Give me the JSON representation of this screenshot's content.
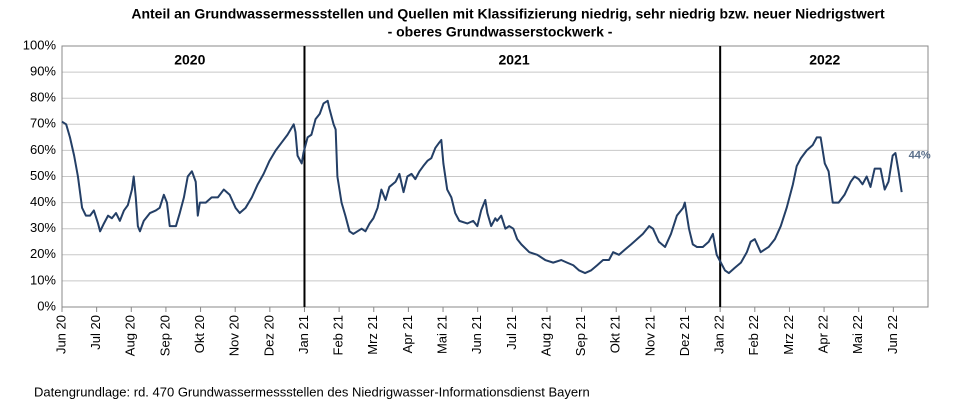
{
  "chart_data": {
    "type": "line",
    "title": [
      "Anteil  an Grundwassermessstellen und Quellen mit Klassifizierung niedrig, sehr niedrig bzw. neuer Niedrigstwert",
      "- oberes Grundwasserstockwerk -"
    ],
    "footnote": "Datengrundlage:  rd. 470 Grundwassermessstellen  des Niedrigwasser-Informationsdienst  Bayern",
    "xlim": [
      0,
      25
    ],
    "xticks": [
      {
        "value": 0,
        "label": "Jun 20"
      },
      {
        "value": 1,
        "label": "Jul 20"
      },
      {
        "value": 2,
        "label": "Aug 20"
      },
      {
        "value": 3,
        "label": "Sep 20"
      },
      {
        "value": 4,
        "label": "Okt 20"
      },
      {
        "value": 5,
        "label": "Nov 20"
      },
      {
        "value": 6,
        "label": "Dez 20"
      },
      {
        "value": 7,
        "label": "Jan 21"
      },
      {
        "value": 8,
        "label": "Feb 21"
      },
      {
        "value": 9,
        "label": "Mrz 21"
      },
      {
        "value": 10,
        "label": "Apr 21"
      },
      {
        "value": 11,
        "label": "Mai 21"
      },
      {
        "value": 12,
        "label": "Jun 21"
      },
      {
        "value": 13,
        "label": "Jul 21"
      },
      {
        "value": 14,
        "label": "Aug 21"
      },
      {
        "value": 15,
        "label": "Sep 21"
      },
      {
        "value": 16,
        "label": "Okt 21"
      },
      {
        "value": 17,
        "label": "Nov 21"
      },
      {
        "value": 18,
        "label": "Dez 21"
      },
      {
        "value": 19,
        "label": "Jan 22"
      },
      {
        "value": 20,
        "label": "Feb 22"
      },
      {
        "value": 21,
        "label": "Mrz 22"
      },
      {
        "value": 22,
        "label": "Apr 22"
      },
      {
        "value": 23,
        "label": "Mai 22"
      },
      {
        "value": 24,
        "label": "Jun 22"
      }
    ],
    "ylim": [
      0,
      100
    ],
    "yticks": [
      {
        "value": 0,
        "label": "0%"
      },
      {
        "value": 10,
        "label": "10%"
      },
      {
        "value": 20,
        "label": "20%"
      },
      {
        "value": 30,
        "label": "30%"
      },
      {
        "value": 40,
        "label": "40%"
      },
      {
        "value": 50,
        "label": "50%"
      },
      {
        "value": 60,
        "label": "60%"
      },
      {
        "value": 70,
        "label": "70%"
      },
      {
        "value": 80,
        "label": "80%"
      },
      {
        "value": 90,
        "label": "90%"
      },
      {
        "value": 100,
        "label": "100%"
      }
    ],
    "grid": true,
    "year_dividers": [
      7,
      19
    ],
    "year_labels": [
      {
        "text": "2020",
        "x": 3.69
      },
      {
        "text": "2021",
        "x": 13.05
      },
      {
        "text": "2022",
        "x": 22.02
      }
    ],
    "x": [
      0,
      0.12,
      0.23,
      0.35,
      0.46,
      0.58,
      0.69,
      0.81,
      0.92,
      1.04,
      1.1,
      1.21,
      1.33,
      1.44,
      1.56,
      1.67,
      1.79,
      1.9,
      2.02,
      2.07,
      2.13,
      2.19,
      2.25,
      2.36,
      2.54,
      2.71,
      2.82,
      2.94,
      3.03,
      3.11,
      3.29,
      3.4,
      3.52,
      3.63,
      3.75,
      3.86,
      3.92,
      3.98,
      4.15,
      4.32,
      4.5,
      4.67,
      4.84,
      5.01,
      5.13,
      5.3,
      5.48,
      5.65,
      5.82,
      5.99,
      6.17,
      6.34,
      6.51,
      6.69,
      6.74,
      6.8,
      6.92,
      6.97,
      7.09,
      7.2,
      7.32,
      7.44,
      7.55,
      7.67,
      7.72,
      7.84,
      7.9,
      7.95,
      8.07,
      8.18,
      8.3,
      8.41,
      8.53,
      8.65,
      8.76,
      8.88,
      8.99,
      9.11,
      9.22,
      9.34,
      9.45,
      9.63,
      9.74,
      9.86,
      9.97,
      10.09,
      10.2,
      10.32,
      10.43,
      10.55,
      10.66,
      10.78,
      10.89,
      10.95,
      11.01,
      11.12,
      11.24,
      11.35,
      11.47,
      11.7,
      11.87,
      11.99,
      12.1,
      12.22,
      12.28,
      12.39,
      12.51,
      12.56,
      12.68,
      12.8,
      12.91,
      13.03,
      13.14,
      13.26,
      13.49,
      13.72,
      13.95,
      14.18,
      14.41,
      14.58,
      14.76,
      14.93,
      15.1,
      15.27,
      15.45,
      15.62,
      15.79,
      15.91,
      16.08,
      16.25,
      16.43,
      16.6,
      16.77,
      16.95,
      17.06,
      17.23,
      17.41,
      17.58,
      17.75,
      17.93,
      17.98,
      18.1,
      18.21,
      18.33,
      18.5,
      18.67,
      18.79,
      18.9,
      19.02,
      19.14,
      19.25,
      19.42,
      19.6,
      19.77,
      19.88,
      20.0,
      20.17,
      20.4,
      20.58,
      20.75,
      20.92,
      21.1,
      21.21,
      21.33,
      21.5,
      21.67,
      21.79,
      21.9,
      21.96,
      22.02,
      22.13,
      22.25,
      22.42,
      22.59,
      22.77,
      22.88,
      23.0,
      23.11,
      23.23,
      23.34,
      23.46,
      23.63,
      23.75,
      23.86,
      23.98,
      24.06,
      24.15,
      24.24
    ],
    "series": [
      {
        "name": "Anteil",
        "color": "#243f66",
        "end_label": "44%",
        "values": [
          71,
          70,
          65,
          58,
          50,
          38,
          35,
          35,
          37,
          32,
          29,
          32,
          35,
          34,
          36,
          33,
          37,
          39,
          45,
          50,
          42,
          31,
          29,
          33,
          36,
          37,
          38,
          43,
          40,
          31,
          31,
          36,
          42,
          50,
          52,
          48,
          35,
          40,
          40,
          42,
          42,
          45,
          43,
          38,
          36,
          38,
          42,
          47,
          51,
          56,
          60,
          63,
          66,
          70,
          67,
          58,
          55,
          59,
          65,
          66,
          72,
          74,
          78,
          79,
          76,
          70,
          68,
          50,
          40,
          35,
          29,
          28,
          29,
          30,
          29,
          32,
          34,
          38,
          45,
          41,
          46,
          48,
          51,
          44,
          50,
          51,
          49,
          52,
          54,
          56,
          57,
          61,
          63,
          64,
          55,
          45,
          42,
          36,
          33,
          32,
          33,
          31,
          37,
          41,
          36,
          31,
          34,
          33,
          35,
          30,
          31,
          30,
          26,
          24,
          21,
          20,
          18,
          17,
          18,
          17,
          16,
          14,
          13,
          14,
          16,
          18,
          18,
          21,
          20,
          22,
          24,
          26,
          28,
          31,
          30,
          25,
          23,
          28,
          35,
          38,
          40,
          30,
          24,
          23,
          23,
          25,
          28,
          20,
          17,
          14,
          13,
          15,
          17,
          21,
          25,
          26,
          21,
          23,
          26,
          31,
          38,
          47,
          54,
          57,
          60,
          62,
          65,
          65,
          60,
          55,
          52,
          40,
          40,
          43,
          48,
          50,
          49,
          47,
          50,
          46,
          53,
          53,
          45,
          48,
          58,
          59,
          52,
          44
        ]
      }
    ]
  }
}
